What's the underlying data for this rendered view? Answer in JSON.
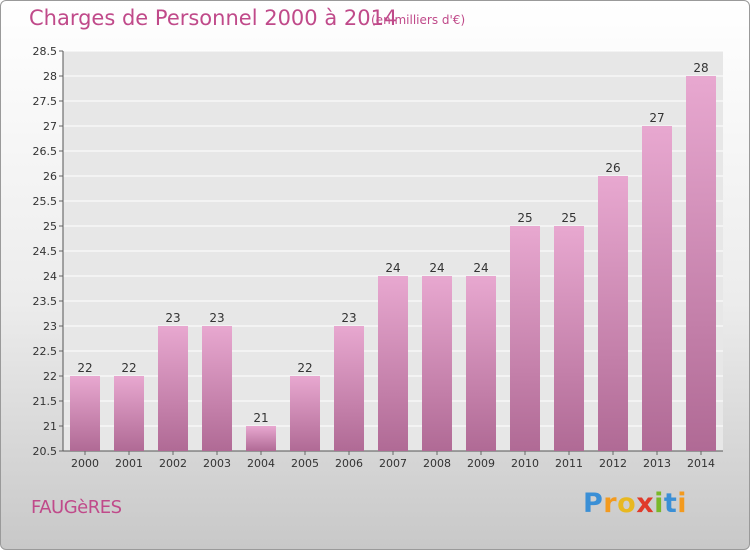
{
  "chart_data": {
    "type": "bar",
    "title": "Charges de Personnel 2000 à 2014",
    "subtitle": "(en milliers d'€)",
    "categories": [
      "2000",
      "2001",
      "2002",
      "2003",
      "2004",
      "2005",
      "2006",
      "2007",
      "2008",
      "2009",
      "2010",
      "2011",
      "2012",
      "2013",
      "2014"
    ],
    "values": [
      22,
      22,
      23,
      23,
      21,
      22,
      23,
      24,
      24,
      24,
      25,
      25,
      26,
      27,
      28
    ],
    "value_labels": [
      "22",
      "22",
      "23",
      "23",
      "21",
      "22",
      "23",
      "24",
      "24",
      "24",
      "25",
      "25",
      "26",
      "27",
      "28"
    ],
    "ylim": [
      20.5,
      28.5
    ],
    "yticks": [
      "20.5",
      "21",
      "21.5",
      "22",
      "22.5",
      "23",
      "23.5",
      "24",
      "24.5",
      "25",
      "25.5",
      "26",
      "26.5",
      "27",
      "27.5",
      "28",
      "28.5"
    ],
    "grid": true,
    "bar_color_top": "#e8a8d0",
    "bar_color_bottom": "#b06a95"
  },
  "footer": {
    "place": "FAUGèRES",
    "logo_letters": [
      "P",
      "r",
      "o",
      "x",
      "i",
      "t",
      "i"
    ],
    "logo_colors": [
      "#3a8fd6",
      "#f39a1e",
      "#e8b820",
      "#e03a2a",
      "#7ab829",
      "#3a8fd6",
      "#f39a1e"
    ]
  }
}
